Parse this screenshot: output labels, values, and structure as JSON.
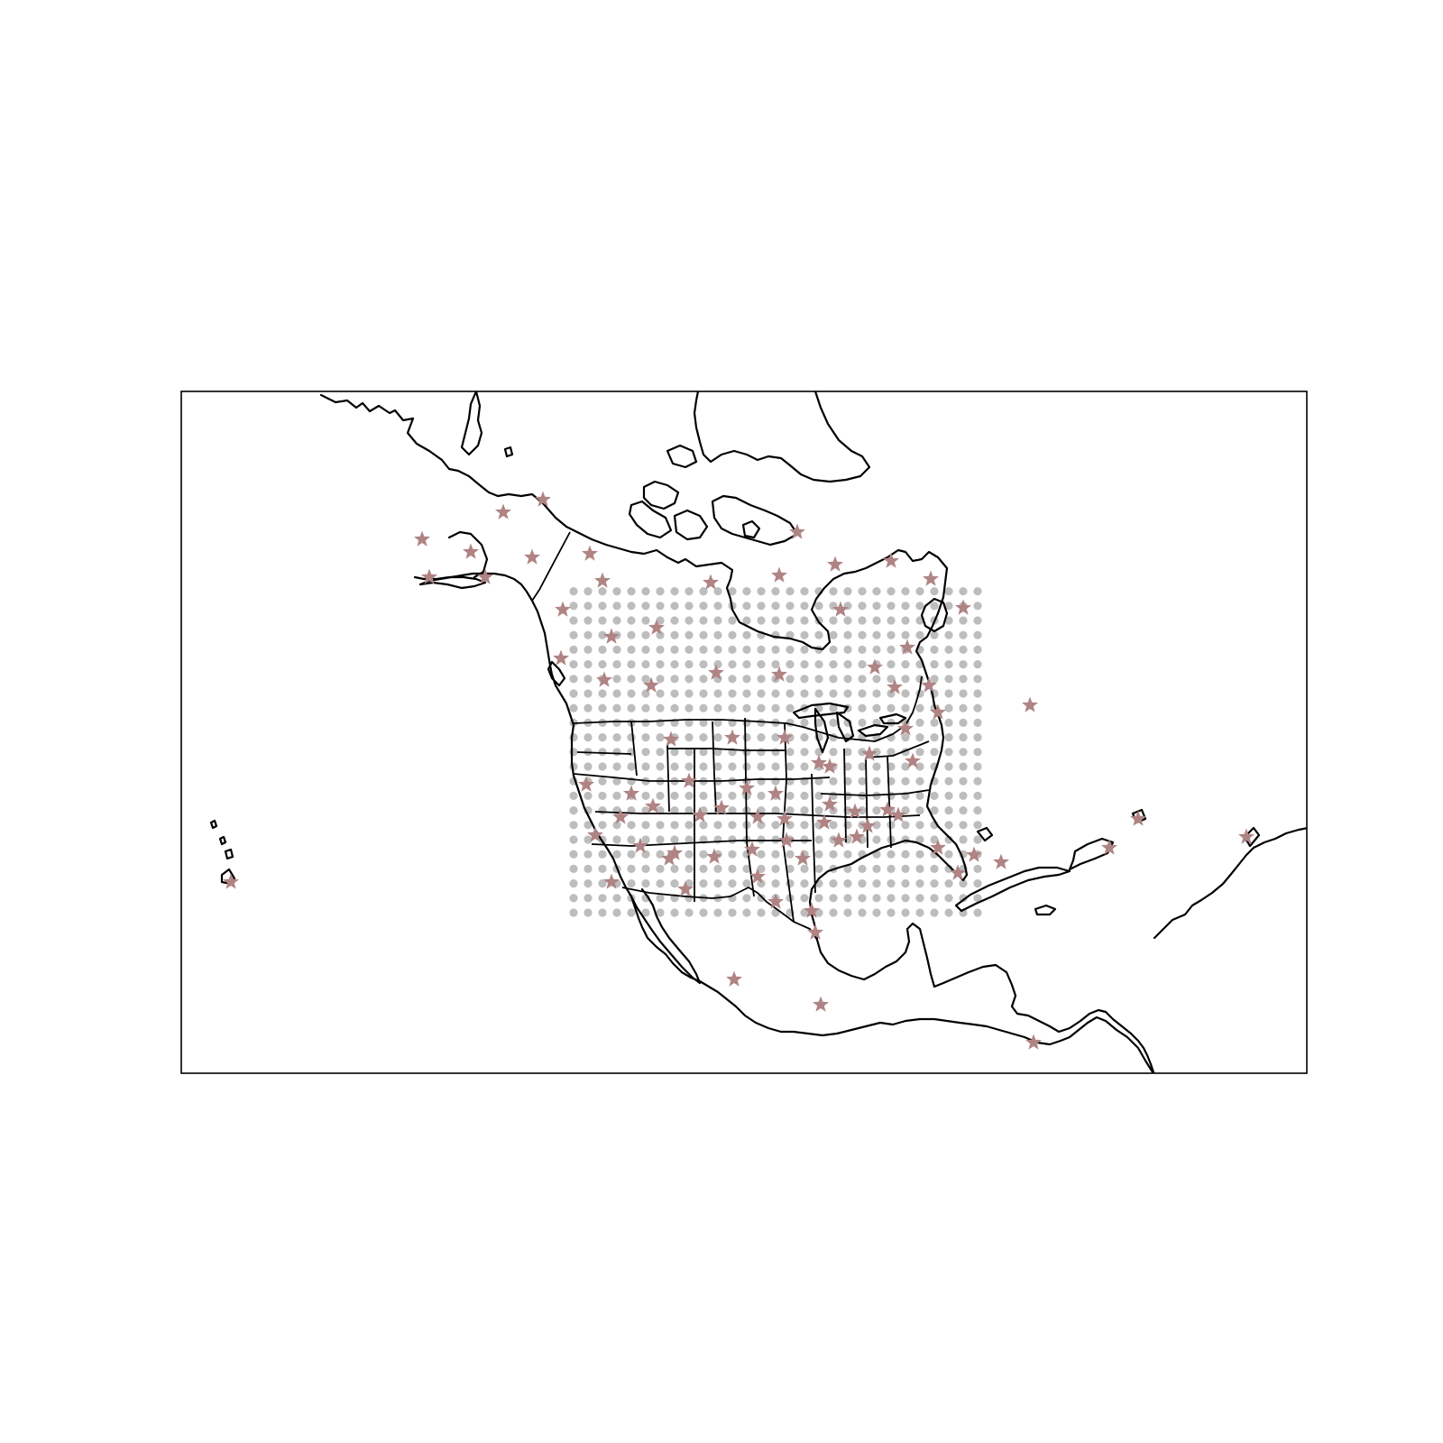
{
  "map": {
    "region": "North America",
    "frame": true,
    "grid_color": "#bdbdbd",
    "station_color": "#b08484",
    "line_color": "#000000",
    "grid": {
      "lon_start": -125,
      "lon_step": 1.5,
      "n_lon": 29,
      "lat_start": 24.5,
      "lat_step": 1.5,
      "n_lat": 23
    },
    "station_icon": "star-marker"
  }
}
